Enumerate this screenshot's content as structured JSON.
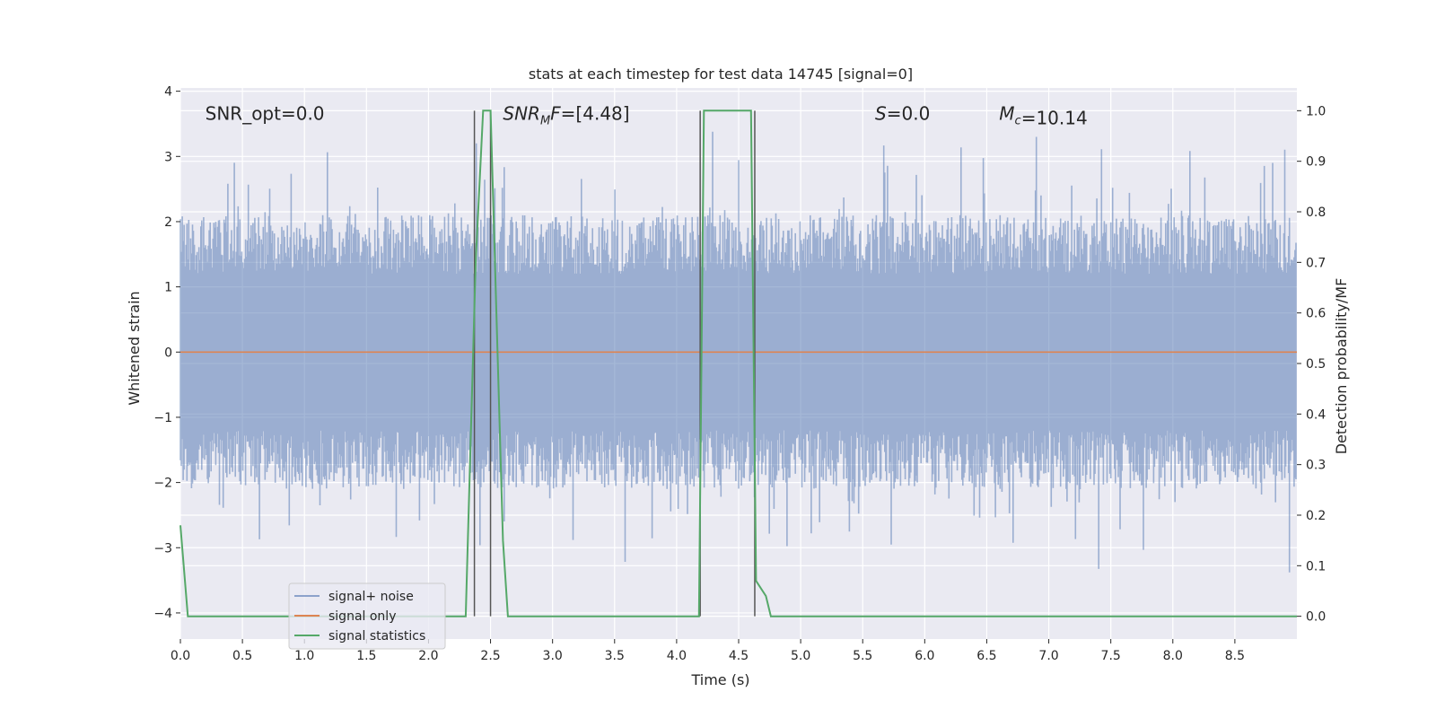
{
  "chart_data": {
    "type": "line",
    "title": "stats at each timestep for test data 14745 [signal=0]",
    "xlabel": "Time (s)",
    "ylabel": "Whitened strain",
    "y2label": "Detection probability/MF",
    "xlim": [
      0.0,
      9.0
    ],
    "ylim": [
      -4.4,
      4.05
    ],
    "y2lim": [
      -0.045,
      1.045
    ],
    "xticks": [
      "0.0",
      "0.5",
      "1.0",
      "1.5",
      "2.0",
      "2.5",
      "3.0",
      "3.5",
      "4.0",
      "4.5",
      "5.0",
      "5.5",
      "6.0",
      "6.5",
      "7.0",
      "7.5",
      "8.0",
      "8.5"
    ],
    "xtick_values": [
      0.0,
      0.5,
      1.0,
      1.5,
      2.0,
      2.5,
      3.0,
      3.5,
      4.0,
      4.5,
      5.0,
      5.5,
      6.0,
      6.5,
      7.0,
      7.5,
      8.0,
      8.5
    ],
    "yticks": [
      "4",
      "3",
      "2",
      "1",
      "0",
      "−1",
      "−2",
      "−3",
      "−4"
    ],
    "ytick_values": [
      4,
      3,
      2,
      1,
      0,
      -1,
      -2,
      -3,
      -4
    ],
    "y2ticks": [
      "1.0",
      "0.9",
      "0.8",
      "0.7",
      "0.6",
      "0.5",
      "0.4",
      "0.3",
      "0.2",
      "0.1",
      "0.0"
    ],
    "y2tick_values": [
      1.0,
      0.9,
      0.8,
      0.7,
      0.6,
      0.5,
      0.4,
      0.3,
      0.2,
      0.1,
      0.0
    ],
    "grid": true,
    "legend_position": "lower-left",
    "noise_envelope": {
      "name": "signal+ noise",
      "color": "#4c72b0",
      "description_values": {
        "typical_amplitude": 1.5,
        "peak_min": -4.0,
        "peak_max": 3.7
      },
      "points": 1200
    },
    "signal_only": {
      "name": "signal only",
      "color": "#dd8452",
      "value": 0.0
    },
    "signal_statistics": {
      "name": "signal statistics",
      "color": "#55a868",
      "x": [
        0.0,
        0.06,
        0.12,
        2.3,
        2.38,
        2.44,
        2.5,
        2.6,
        2.64,
        4.18,
        4.22,
        4.28,
        4.6,
        4.64,
        4.72,
        4.76,
        9.0
      ],
      "y": [
        0.18,
        0.0,
        0.0,
        0.0,
        0.7,
        1.0,
        1.0,
        0.15,
        0.0,
        0.0,
        1.0,
        1.0,
        1.0,
        0.07,
        0.04,
        0.0,
        0.0
      ]
    },
    "vertical_lines": {
      "color": "#555555",
      "x": [
        2.37,
        2.5,
        4.19,
        4.63
      ]
    },
    "annotations": [
      {
        "text_plain": "SNR_opt=0.0",
        "x": 0.2,
        "y": 3.6
      },
      {
        "text_italic": "SNR",
        "text_sub": "M",
        "text_italic2": "F",
        "text_plain": "=[4.48]",
        "x": 2.6,
        "y": 3.6
      },
      {
        "text_italic": "S",
        "text_plain": "=0.0",
        "x": 5.6,
        "y": 3.6
      },
      {
        "text_italic": "M",
        "text_sub": "c",
        "text_plain": "=10.14",
        "x": 6.6,
        "y": 3.6
      }
    ]
  }
}
